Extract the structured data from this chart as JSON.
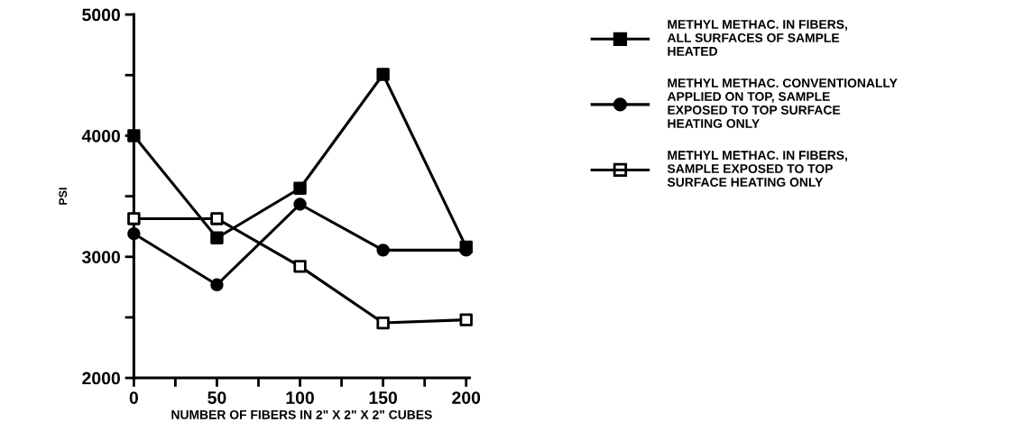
{
  "chart_data": {
    "type": "line",
    "xlabel": "NUMBER OF FIBERS IN 2\" X 2\" X 2\" CUBES",
    "ylabel": "PSI",
    "x": [
      0,
      50,
      100,
      150,
      200
    ],
    "series": [
      {
        "name": "METHYL METHAC. IN FIBERS,\nALL SURFACES OF SAMPLE\nHEATED",
        "color": "#000000",
        "marker": "square",
        "values": [
          4000,
          3156,
          3566,
          4506,
          3080
        ]
      },
      {
        "name": "METHYL METHAC. CONVENTIONALLY\nAPPLIED ON TOP, SAMPLE\nEXPOSED TO TOP SURFACE\nHEATING ONLY",
        "color": "#000000",
        "marker": "circle",
        "values": [
          3191,
          2769,
          3434,
          3055,
          3055
        ]
      },
      {
        "name": "METHYL METHAC. IN FIBERS,\nSAMPLE EXPOSED TO TOP\nSURFACE HEATING ONLY",
        "color": "#000000",
        "marker": "square",
        "colors": [
          "#ffffff",
          "#ffffff",
          "#ffffff",
          "#ffffff",
          "#ffffff"
        ],
        "values": [
          3315,
          3315,
          2921,
          2454,
          2480
        ]
      }
    ],
    "xlim": [
      0,
      202
    ],
    "ylim": [
      2000,
      5000
    ],
    "xticks": [
      0,
      {
        "value": 25,
        "label": null
      },
      50,
      {
        "value": 75,
        "label": null
      },
      100,
      {
        "value": 125,
        "label": null
      },
      150,
      {
        "value": 175,
        "label": null
      },
      200
    ],
    "yticks": [
      2000,
      {
        "value": 2500,
        "label": null
      },
      3000,
      {
        "value": 3500,
        "label": null
      },
      4000,
      {
        "value": 4500,
        "label": null
      },
      5000
    ],
    "grid": false,
    "legend": "right",
    "line_style": "solid"
  }
}
